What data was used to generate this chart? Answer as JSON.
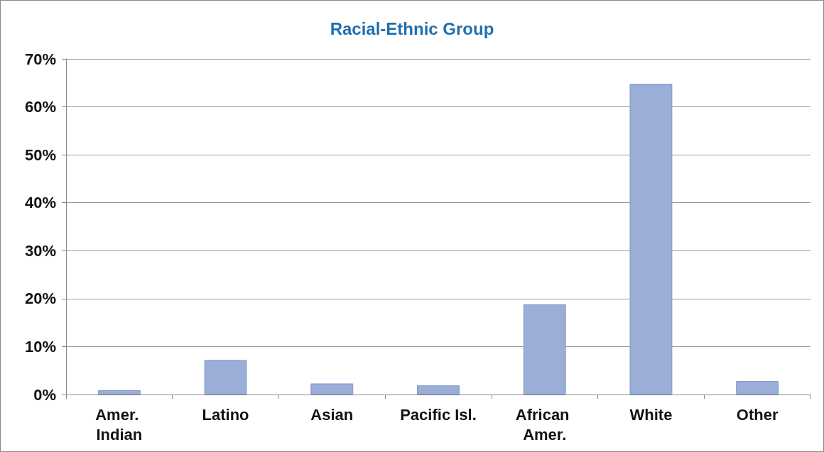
{
  "chart_data": {
    "type": "bar",
    "title": "Racial-Ethnic Group",
    "categories": [
      "Amer. Indian",
      "Latino",
      "Asian",
      "Pacific Isl.",
      "African Amer.",
      "White",
      "Other"
    ],
    "values": [
      0.9,
      7.2,
      2.3,
      1.9,
      18.8,
      64.8,
      2.8
    ],
    "color": "#9aaed8",
    "ylim": [
      0,
      70
    ],
    "yticks": [
      {
        "value": 0,
        "label": "0%"
      },
      {
        "value": 10,
        "label": "10%"
      },
      {
        "value": 20,
        "label": "20%"
      },
      {
        "value": 30,
        "label": "30%"
      },
      {
        "value": 40,
        "label": "40%"
      },
      {
        "value": 50,
        "label": "50%"
      },
      {
        "value": 60,
        "label": "60%"
      },
      {
        "value": 70,
        "label": "70%"
      }
    ],
    "grid": "y"
  }
}
